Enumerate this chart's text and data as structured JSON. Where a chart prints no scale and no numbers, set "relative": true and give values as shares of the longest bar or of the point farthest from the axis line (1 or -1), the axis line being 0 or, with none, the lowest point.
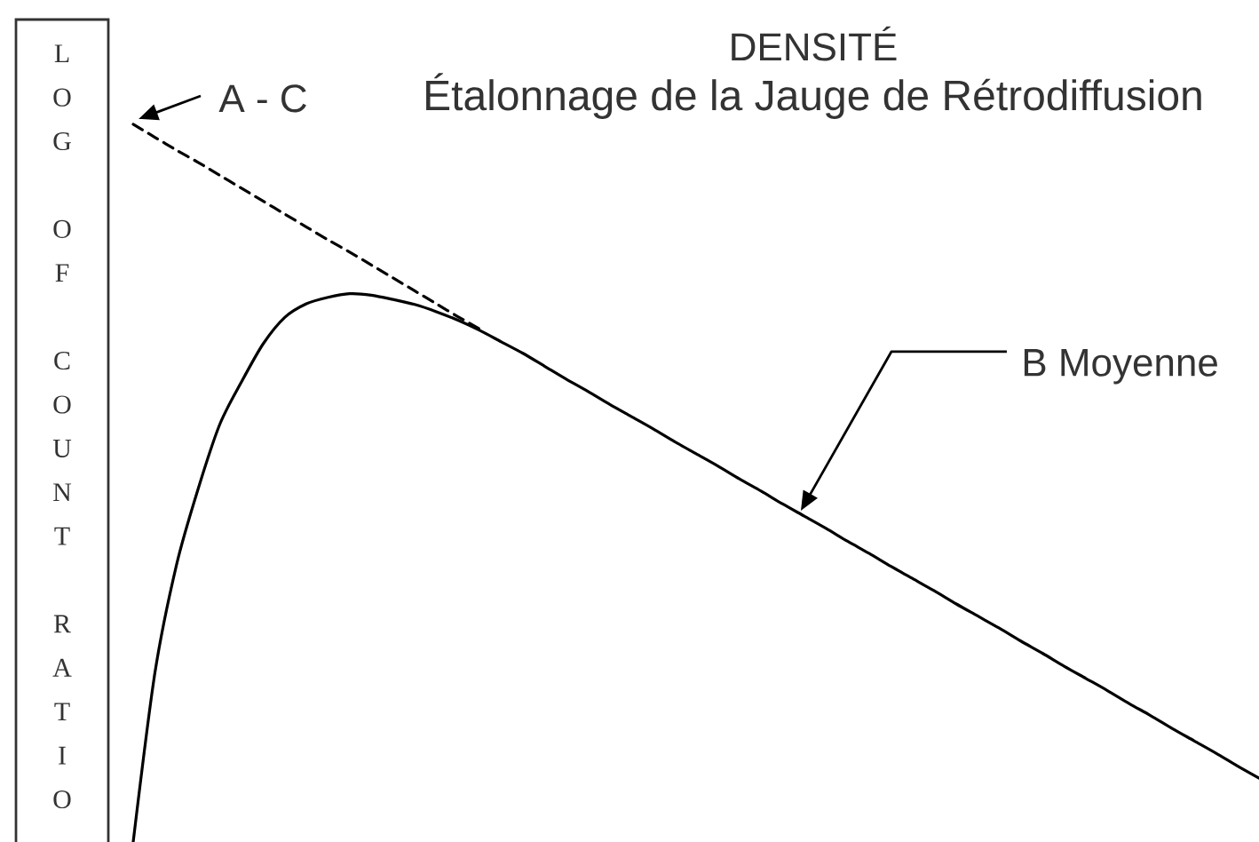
{
  "chart_data": {
    "type": "line",
    "title": "DENSITÉ",
    "subtitle": "Étalonnage de la Jauge de Rétrodiffusion",
    "ylabel": "LOG OF COUNT RATIO",
    "relative": true,
    "annotations": [
      "A - C",
      "B Moyenne"
    ],
    "categories": [
      null,
      null,
      null,
      null,
      null,
      null,
      null,
      null,
      null,
      null,
      null,
      null,
      null,
      null,
      null,
      null,
      null,
      null,
      null,
      null,
      null,
      null,
      null,
      null,
      null,
      null,
      null,
      null,
      null,
      null,
      null,
      null,
      null,
      null,
      null,
      null,
      null,
      null,
      null,
      null,
      null,
      null,
      null,
      null,
      null,
      null,
      null,
      null,
      null,
      null,
      null,
      null,
      null
    ],
    "series": [
      {
        "color": "#000000",
        "line_style": "solid",
        "values": [
          0,
          0.235,
          0.386,
          0.492,
          0.582,
          0.641,
          0.694,
          0.731,
          0.75,
          0.759,
          0.764,
          0.762,
          0.756,
          0.749,
          0.739,
          0.727,
          0.713,
          0.697,
          0.681,
          0.663,
          0.645,
          0.628,
          0.61,
          0.593,
          0.576,
          0.558,
          0.541,
          0.524,
          0.506,
          0.489,
          0.471,
          0.454,
          0.437,
          0.419,
          0.402,
          0.384,
          0.367,
          0.35,
          0.332,
          0.315,
          0.298,
          0.28,
          0.263,
          0.245,
          0.228,
          0.211,
          0.193,
          0.176,
          0.158,
          0.141,
          0.124,
          0.106,
          0.089
        ]
      },
      {
        "color": "#000000",
        "line_style": "dashed",
        "values": [
          1,
          0.982,
          0.964,
          0.947,
          0.929,
          0.911,
          0.893,
          0.875,
          0.857,
          0.839,
          0.822,
          0.804,
          0.786,
          0.768,
          0.75,
          0.732,
          0.715,
          null,
          null,
          null,
          null,
          null,
          null,
          null,
          null,
          null,
          null,
          null,
          null,
          null,
          null,
          null,
          null,
          null,
          null,
          null,
          null,
          null,
          null,
          null,
          null,
          null,
          null,
          null,
          null,
          null,
          null,
          null,
          null,
          null,
          null,
          null,
          null
        ]
      }
    ]
  }
}
